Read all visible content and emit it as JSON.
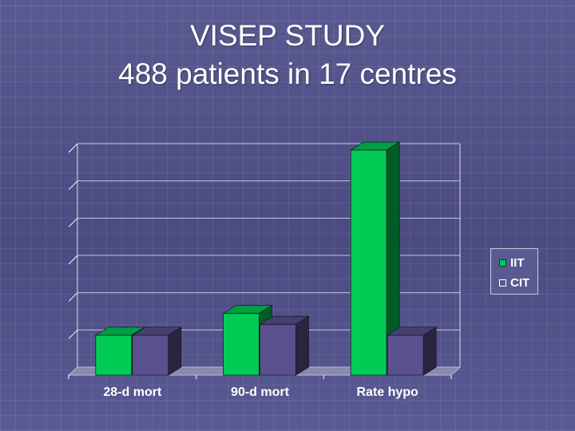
{
  "title_line1": "VISEP STUDY",
  "title_line2": "488 patients in 17 centres",
  "colors": {
    "IIT": "#00cc55",
    "CIT": "#5a5090",
    "floor": "#8a8ab0",
    "grid": "#d8d8ea",
    "axis": "#ffffff"
  },
  "chart_data": {
    "type": "bar",
    "categories": [
      "28-d mort",
      "90-d mort",
      "Rate hypo"
    ],
    "series": [
      {
        "name": "IIT",
        "values": [
          11,
          17,
          62
        ]
      },
      {
        "name": "CIT",
        "values": [
          11,
          14,
          11
        ]
      }
    ],
    "title": "",
    "xlabel": "",
    "ylabel": "",
    "ylim": [
      0,
      62
    ],
    "grid": true,
    "legend": "right"
  }
}
